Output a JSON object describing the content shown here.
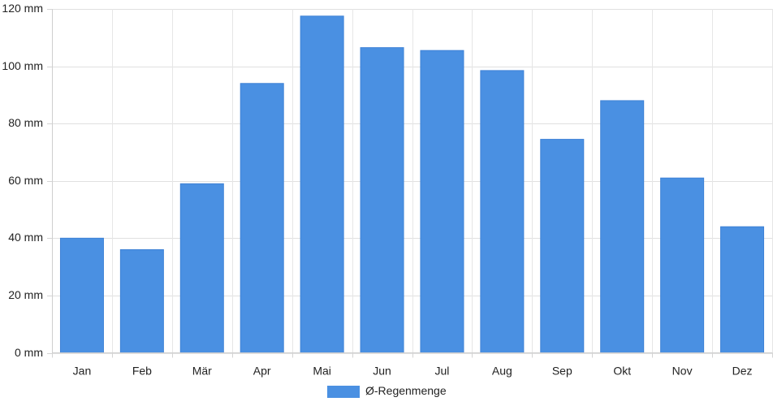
{
  "chart_data": {
    "type": "bar",
    "categories": [
      "Jan",
      "Feb",
      "Mär",
      "Apr",
      "Mai",
      "Jun",
      "Jul",
      "Aug",
      "Sep",
      "Okt",
      "Nov",
      "Dez"
    ],
    "series": [
      {
        "name": "Ø-Regenmenge",
        "values": [
          40,
          36,
          59,
          94,
          117.5,
          106.5,
          105.5,
          98.5,
          74.5,
          88,
          61,
          44
        ],
        "color": "#4a90e2"
      }
    ],
    "title": "",
    "xlabel": "",
    "ylabel": "",
    "ylim": [
      0,
      120
    ],
    "y_ticks": [
      0,
      20,
      40,
      60,
      80,
      100,
      120
    ],
    "y_tick_labels": [
      "0 mm",
      "20 mm",
      "40 mm",
      "60 mm",
      "80 mm",
      "100 mm",
      "120 mm"
    ],
    "y_unit": "mm",
    "grid": true,
    "legend_position": "bottom-center"
  }
}
